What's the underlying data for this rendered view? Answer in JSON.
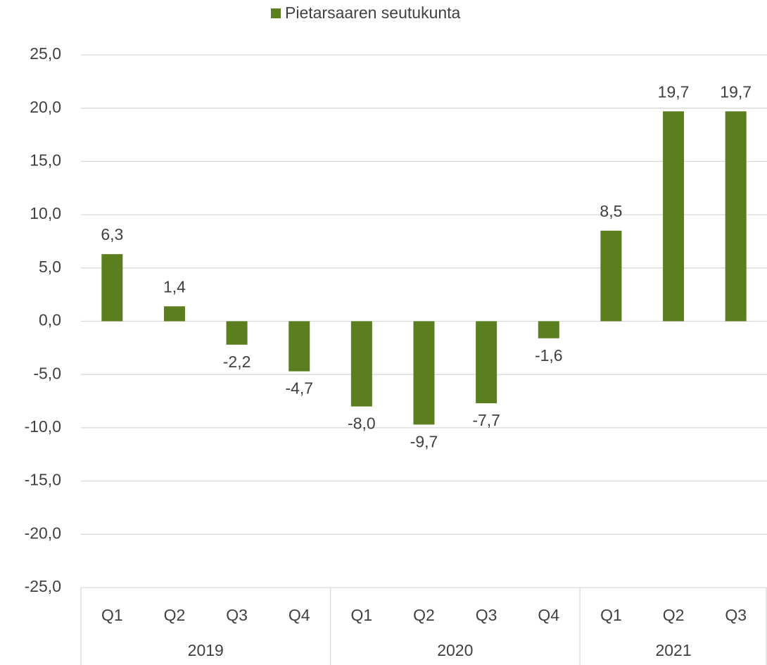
{
  "chart_data": {
    "type": "bar",
    "groups": [
      {
        "name": "2019",
        "categories": [
          "Q1",
          "Q2",
          "Q3",
          "Q4"
        ]
      },
      {
        "name": "2020",
        "categories": [
          "Q1",
          "Q2",
          "Q3",
          "Q4"
        ]
      },
      {
        "name": "2021",
        "categories": [
          "Q1",
          "Q2",
          "Q3"
        ]
      }
    ],
    "series": [
      {
        "name": "Pietarsaaren seutukunta",
        "color": "#5b7f1e",
        "values": [
          6.3,
          1.4,
          -2.2,
          -4.7,
          -8.0,
          -9.7,
          -7.7,
          -1.6,
          8.5,
          19.7,
          19.7
        ],
        "value_labels": [
          "6,3",
          "1,4",
          "-2,2",
          "-4,7",
          "-8,0",
          "-9,7",
          "-7,7",
          "-1,6",
          "8,5",
          "19,7",
          "19,7"
        ]
      }
    ],
    "ylim": [
      -25,
      25
    ],
    "yticks": [
      {
        "value": -25,
        "label": "-25,0"
      },
      {
        "value": -20,
        "label": "-20,0"
      },
      {
        "value": -15,
        "label": "-15,0"
      },
      {
        "value": -10,
        "label": "-10,0"
      },
      {
        "value": -5,
        "label": "-5,0"
      },
      {
        "value": 0,
        "label": "0,0"
      },
      {
        "value": 5,
        "label": "5,0"
      },
      {
        "value": 10,
        "label": "10,0"
      },
      {
        "value": 15,
        "label": "15,0"
      },
      {
        "value": 20,
        "label": "20,0"
      },
      {
        "value": 25,
        "label": "25,0"
      }
    ],
    "grid": true,
    "legend": "top"
  }
}
